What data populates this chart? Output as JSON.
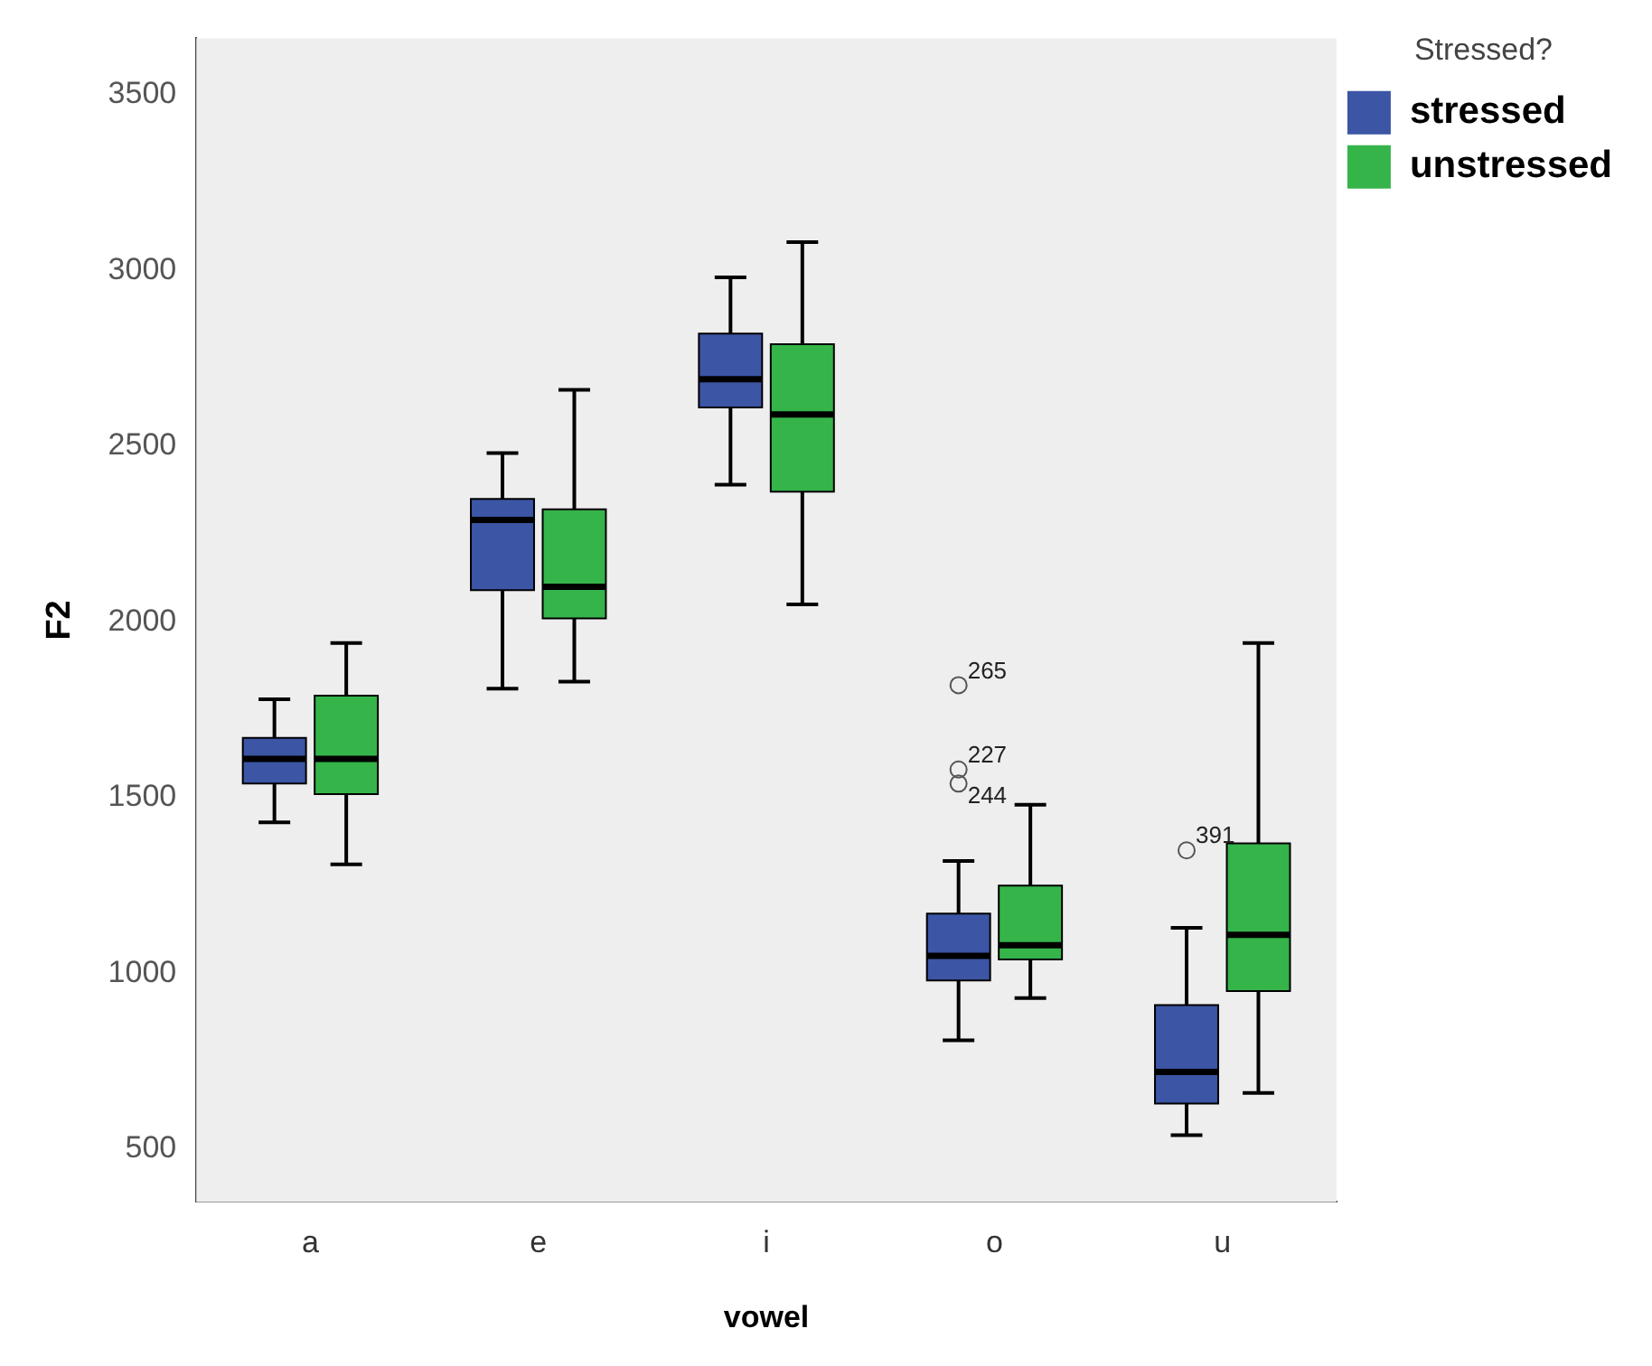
{
  "chart_data": {
    "type": "box",
    "xlabel": "vowel",
    "ylabel": "F2",
    "legend_title": "Stressed?",
    "legend": "top right",
    "grid": false,
    "categories": [
      "a",
      "e",
      "i",
      "o",
      "u"
    ],
    "ylim": [
      350,
      3660
    ],
    "yticks": [
      500,
      1000,
      1500,
      2000,
      2500,
      3000,
      3500
    ],
    "series": [
      {
        "name": "stressed",
        "color": "#3c55a5",
        "boxes": [
          {
            "low": 1430,
            "q1": 1540,
            "median": 1610,
            "q3": 1670,
            "high": 1780
          },
          {
            "low": 1810,
            "q1": 2090,
            "median": 2290,
            "q3": 2350,
            "high": 2480
          },
          {
            "low": 2390,
            "q1": 2610,
            "median": 2690,
            "q3": 2820,
            "high": 2980
          },
          {
            "low": 810,
            "q1": 980,
            "median": 1050,
            "q3": 1170,
            "high": 1320,
            "outliers": [
              1820,
              1580,
              1540
            ]
          },
          {
            "low": 540,
            "q1": 630,
            "median": 720,
            "q3": 910,
            "high": 1130,
            "outliers": [
              1350
            ]
          }
        ]
      },
      {
        "name": "unstressed",
        "color": "#35b44a",
        "boxes": [
          {
            "low": 1310,
            "q1": 1510,
            "median": 1610,
            "q3": 1790,
            "high": 1940
          },
          {
            "low": 1830,
            "q1": 2010,
            "median": 2100,
            "q3": 2320,
            "high": 2660
          },
          {
            "low": 2050,
            "q1": 2370,
            "median": 2590,
            "q3": 2790,
            "high": 3080
          },
          {
            "low": 930,
            "q1": 1040,
            "median": 1080,
            "q3": 1250,
            "high": 1480
          },
          {
            "low": 660,
            "q1": 950,
            "median": 1110,
            "q3": 1370,
            "high": 1940
          }
        ]
      }
    ],
    "annotations": [
      "265",
      "227",
      "244",
      "391"
    ]
  }
}
